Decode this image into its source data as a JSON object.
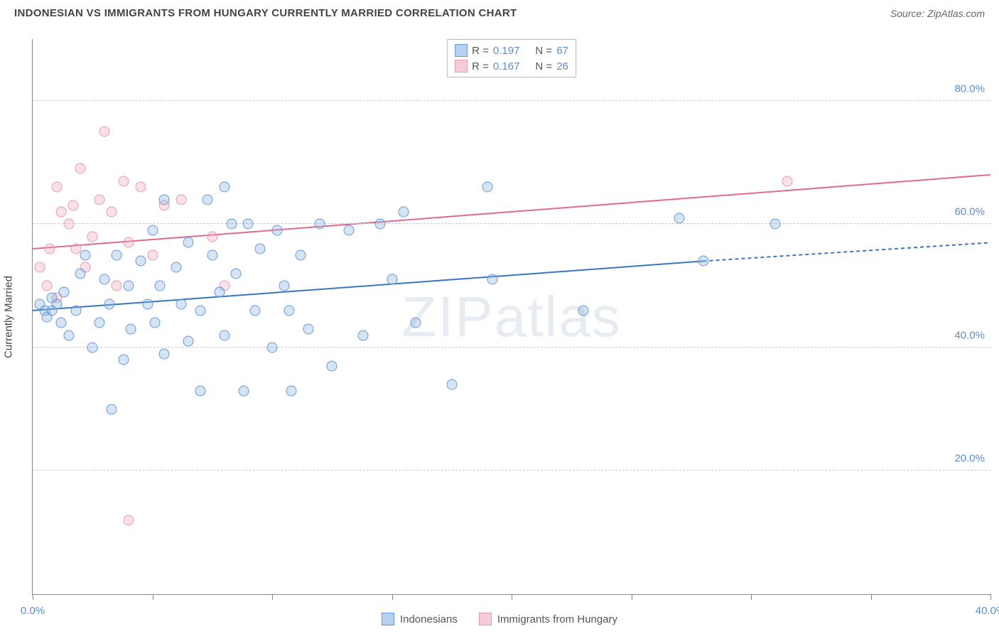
{
  "header": {
    "title": "INDONESIAN VS IMMIGRANTS FROM HUNGARY CURRENTLY MARRIED CORRELATION CHART",
    "source": "Source: ZipAtlas.com"
  },
  "axes": {
    "ylabel": "Currently Married",
    "xlim": [
      0,
      40
    ],
    "ylim": [
      0,
      90
    ],
    "xticks": [
      0,
      5,
      10,
      15,
      20,
      25,
      30,
      35,
      40
    ],
    "xtick_labels": {
      "0": "0.0%",
      "40": "40.0%"
    },
    "ygrid": [
      20,
      40,
      60,
      80
    ],
    "ytick_labels": {
      "20": "20.0%",
      "40": "40.0%",
      "60": "60.0%",
      "80": "80.0%"
    },
    "grid_color": "#cccccc",
    "axis_color": "#888888",
    "tick_label_color": "#5b8dd6",
    "label_fontsize": 15
  },
  "legend_top": {
    "rows": [
      {
        "swatch": "blue",
        "r_label": "R =",
        "r_value": "0.197",
        "n_label": "N =",
        "n_value": "67"
      },
      {
        "swatch": "pink",
        "r_label": "R =",
        "r_value": "0.167",
        "n_label": "N =",
        "n_value": "26"
      }
    ]
  },
  "legend_bottom": {
    "items": [
      {
        "swatch": "blue",
        "label": "Indonesians"
      },
      {
        "swatch": "pink",
        "label": "Immigrants from Hungary"
      }
    ]
  },
  "watermark": {
    "bold": "ZIP",
    "thin": "atlas"
  },
  "series": {
    "blue": {
      "marker_size": 15,
      "fill": "rgba(135,180,230,0.35)",
      "stroke": "#6699d8",
      "trend": {
        "x1": 0,
        "y1": 46,
        "x2": 28,
        "y2": 54,
        "x3": 40,
        "y3": 57,
        "dash_from": 28,
        "color": "#3b74c4",
        "width": 2
      },
      "points": [
        [
          0.3,
          47
        ],
        [
          0.5,
          46
        ],
        [
          0.6,
          45
        ],
        [
          0.8,
          48
        ],
        [
          0.8,
          46
        ],
        [
          1.0,
          47
        ],
        [
          1.2,
          44
        ],
        [
          1.3,
          49
        ],
        [
          1.5,
          42
        ],
        [
          1.8,
          46
        ],
        [
          2.0,
          52
        ],
        [
          2.2,
          55
        ],
        [
          2.5,
          40
        ],
        [
          2.8,
          44
        ],
        [
          3.0,
          51
        ],
        [
          3.2,
          47
        ],
        [
          3.3,
          30
        ],
        [
          3.5,
          55
        ],
        [
          3.8,
          38
        ],
        [
          4.0,
          50
        ],
        [
          4.1,
          43
        ],
        [
          4.5,
          54
        ],
        [
          4.8,
          47
        ],
        [
          5.0,
          59
        ],
        [
          5.1,
          44
        ],
        [
          5.3,
          50
        ],
        [
          5.5,
          39
        ],
        [
          5.5,
          64
        ],
        [
          6.0,
          53
        ],
        [
          6.2,
          47
        ],
        [
          6.5,
          57
        ],
        [
          6.5,
          41
        ],
        [
          7.0,
          46
        ],
        [
          7.0,
          33
        ],
        [
          7.3,
          64
        ],
        [
          7.5,
          55
        ],
        [
          7.8,
          49
        ],
        [
          8.0,
          66
        ],
        [
          8.0,
          42
        ],
        [
          8.3,
          60
        ],
        [
          8.5,
          52
        ],
        [
          8.8,
          33
        ],
        [
          9.0,
          60
        ],
        [
          9.3,
          46
        ],
        [
          9.5,
          56
        ],
        [
          10.0,
          40
        ],
        [
          10.2,
          59
        ],
        [
          10.5,
          50
        ],
        [
          10.7,
          46
        ],
        [
          10.8,
          33
        ],
        [
          11.2,
          55
        ],
        [
          11.5,
          43
        ],
        [
          12.0,
          60
        ],
        [
          12.5,
          37
        ],
        [
          13.2,
          59
        ],
        [
          13.8,
          42
        ],
        [
          14.5,
          60
        ],
        [
          15.0,
          51
        ],
        [
          15.5,
          62
        ],
        [
          16.0,
          44
        ],
        [
          17.5,
          34
        ],
        [
          19.0,
          66
        ],
        [
          19.2,
          51
        ],
        [
          23.0,
          46
        ],
        [
          27.0,
          61
        ],
        [
          28.0,
          54
        ],
        [
          31.0,
          60
        ]
      ]
    },
    "pink": {
      "marker_size": 15,
      "fill": "rgba(240,170,190,0.35)",
      "stroke": "#e89bb0",
      "trend": {
        "x1": 0,
        "y1": 56,
        "x2": 40,
        "y2": 68,
        "color": "#e06a8c",
        "width": 2
      },
      "points": [
        [
          0.3,
          53
        ],
        [
          0.6,
          50
        ],
        [
          0.7,
          56
        ],
        [
          1.0,
          48
        ],
        [
          1.0,
          66
        ],
        [
          1.2,
          62
        ],
        [
          1.5,
          60
        ],
        [
          1.7,
          63
        ],
        [
          1.8,
          56
        ],
        [
          2.0,
          69
        ],
        [
          2.2,
          53
        ],
        [
          2.5,
          58
        ],
        [
          2.8,
          64
        ],
        [
          3.0,
          75
        ],
        [
          3.3,
          62
        ],
        [
          3.5,
          50
        ],
        [
          3.8,
          67
        ],
        [
          4.0,
          57
        ],
        [
          4.0,
          12
        ],
        [
          4.5,
          66
        ],
        [
          5.0,
          55
        ],
        [
          5.5,
          63
        ],
        [
          6.2,
          64
        ],
        [
          7.5,
          58
        ],
        [
          8.0,
          50
        ],
        [
          31.5,
          67
        ]
      ]
    }
  },
  "colors": {
    "background": "#ffffff",
    "title": "#444444",
    "source": "#666666"
  }
}
